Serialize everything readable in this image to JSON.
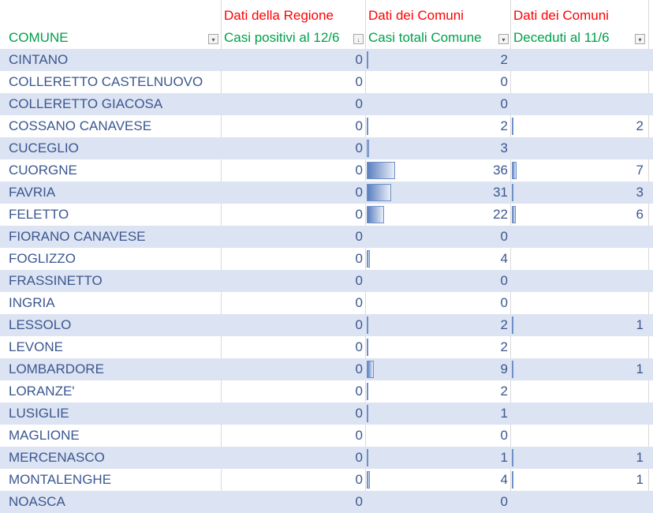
{
  "group_headers": [
    "",
    "Dati della Regione",
    "Dati dei Comuni",
    "Dati dei Comuni"
  ],
  "columns": [
    "COMUNE",
    "Casi positivi al 12/6",
    "Casi totali Comune",
    "Deceduti al 11/6"
  ],
  "colors": {
    "group_header": "#ff0000",
    "column_header": "#00a04a",
    "text": "#3b5790",
    "band": "#dce3f2",
    "bar": "#5a7fc0"
  },
  "rows": [
    {
      "comune": "CINTANO",
      "positivi": "0",
      "totali": "2",
      "deceduti": ""
    },
    {
      "comune": "COLLERETTO CASTELNUOVO",
      "positivi": "0",
      "totali": "0",
      "deceduti": ""
    },
    {
      "comune": "COLLERETTO GIACOSA",
      "positivi": "0",
      "totali": "0",
      "deceduti": ""
    },
    {
      "comune": "COSSANO CANAVESE",
      "positivi": "0",
      "totali": "2",
      "deceduti": "2"
    },
    {
      "comune": "CUCEGLIO",
      "positivi": "0",
      "totali": "3",
      "deceduti": ""
    },
    {
      "comune": "CUORGNE",
      "positivi": "0",
      "totali": "36",
      "deceduti": "7"
    },
    {
      "comune": "FAVRIA",
      "positivi": "0",
      "totali": "31",
      "deceduti": "3"
    },
    {
      "comune": "FELETTO",
      "positivi": "0",
      "totali": "22",
      "deceduti": "6"
    },
    {
      "comune": "FIORANO CANAVESE",
      "positivi": "0",
      "totali": "0",
      "deceduti": ""
    },
    {
      "comune": "FOGLIZZO",
      "positivi": "0",
      "totali": "4",
      "deceduti": ""
    },
    {
      "comune": "FRASSINETTO",
      "positivi": "0",
      "totali": "0",
      "deceduti": ""
    },
    {
      "comune": "INGRIA",
      "positivi": "0",
      "totali": "0",
      "deceduti": ""
    },
    {
      "comune": "LESSOLO",
      "positivi": "0",
      "totali": "2",
      "deceduti": "1"
    },
    {
      "comune": "LEVONE",
      "positivi": "0",
      "totali": "2",
      "deceduti": ""
    },
    {
      "comune": "LOMBARDORE",
      "positivi": "0",
      "totali": "9",
      "deceduti": "1"
    },
    {
      "comune": "LORANZE'",
      "positivi": "0",
      "totali": "2",
      "deceduti": ""
    },
    {
      "comune": "LUSIGLIE",
      "positivi": "0",
      "totali": "1",
      "deceduti": ""
    },
    {
      "comune": "MAGLIONE",
      "positivi": "0",
      "totali": "0",
      "deceduti": ""
    },
    {
      "comune": "MERCENASCO",
      "positivi": "0",
      "totali": "1",
      "deceduti": "1"
    },
    {
      "comune": "MONTALENGHE",
      "positivi": "0",
      "totali": "4",
      "deceduti": "1"
    },
    {
      "comune": "NOASCA",
      "positivi": "0",
      "totali": "0",
      "deceduti": ""
    }
  ]
}
